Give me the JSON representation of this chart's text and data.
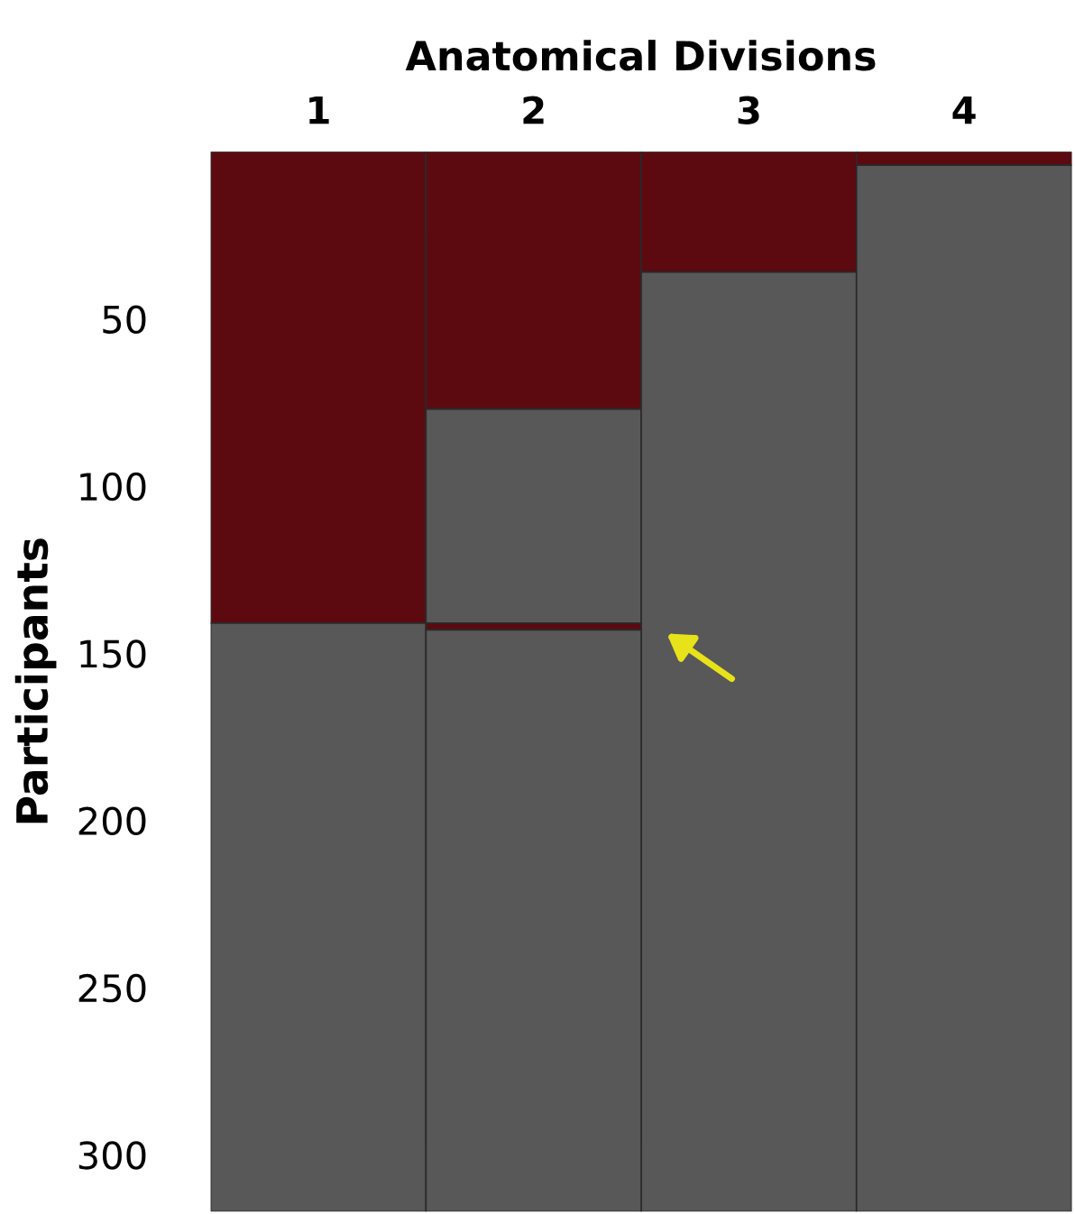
{
  "chart_data": {
    "type": "bar",
    "stacked": true,
    "xlabel": "Anatomical Divisions",
    "ylabel": "Participants",
    "categories": [
      "1",
      "2",
      "3",
      "4"
    ],
    "series": [
      {
        "color": "#5c0a10",
        "values": [
          141,
          77,
          36,
          4
        ]
      },
      {
        "color": "#585858",
        "values": [
          176,
          64,
          281,
          313
        ]
      },
      {
        "color": "#5c0a10",
        "values": [
          0,
          2,
          0,
          0
        ]
      },
      {
        "color": "#585858",
        "values": [
          0,
          174,
          0,
          0
        ]
      }
    ],
    "ylim": [
      317,
      0
    ],
    "yticks": [
      50,
      100,
      150,
      200,
      250,
      300
    ],
    "grid": false,
    "legend": false
  }
}
